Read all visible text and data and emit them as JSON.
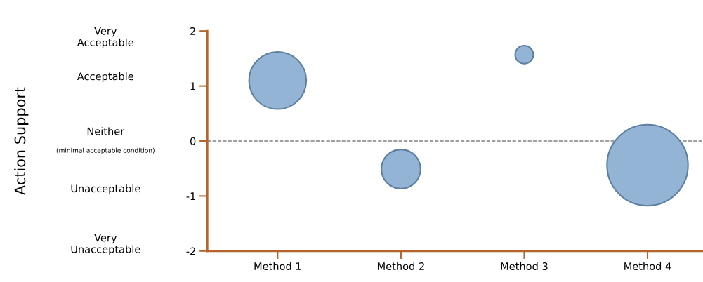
{
  "chart_data": {
    "type": "bubble",
    "categories": [
      "Method 1",
      "Method 2",
      "Method 3",
      "Method 4"
    ],
    "series": [
      {
        "color": "#94b4d6",
        "values": [
          1.1,
          -0.51,
          1.57,
          -0.44
        ],
        "sizes": [
          0.5,
          0.233,
          0.05,
          1
        ]
      }
    ],
    "ylim": [
      -2,
      2
    ],
    "yticks": [
      -2,
      -1,
      0,
      1,
      2
    ],
    "ref_lines": [
      {
        "axis": "y",
        "value": 0,
        "color": "#808080",
        "line_style": "dashed"
      }
    ],
    "annotations": [
      "Action Support",
      "Very\nAcceptable",
      "Acceptable",
      "Neither",
      "(minimal acceptable condition)",
      "Unacceptable",
      "Very\nUnacceptable"
    ],
    "grid": false,
    "legend": false
  }
}
